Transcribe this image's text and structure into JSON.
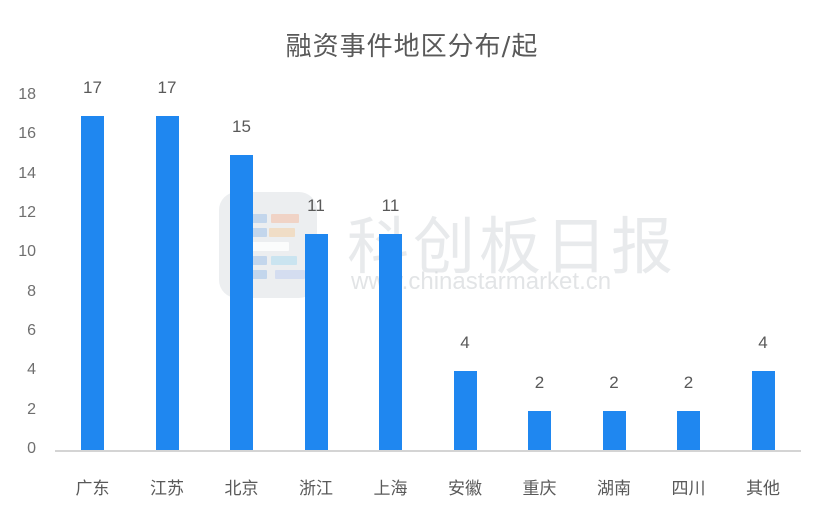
{
  "chart_data": {
    "type": "bar",
    "title": "融资事件地区分布/起",
    "xlabel": "",
    "ylabel": "",
    "ylim": [
      0,
      18
    ],
    "yticks": [
      0,
      2,
      4,
      6,
      8,
      10,
      12,
      14,
      16,
      18
    ],
    "grid": false,
    "legend": null,
    "data_labels": true,
    "categories": [
      "广东",
      "江苏",
      "北京",
      "浙江",
      "上海",
      "安徽",
      "重庆",
      "湖南",
      "四川",
      "其他"
    ],
    "values": [
      17,
      17,
      15,
      11,
      11,
      4,
      2,
      2,
      2,
      4
    ],
    "bar_color": "#1f87f0"
  },
  "watermark": {
    "name_cn": "科创板日报",
    "url": "www.chinastarmarket.cn"
  }
}
